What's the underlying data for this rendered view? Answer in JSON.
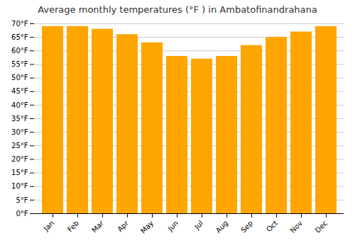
{
  "chart_data": {
    "type": "bar",
    "title": "Average monthly temperatures (°F ) in Ambatofinandrahana",
    "categories": [
      "Jan",
      "Feb",
      "Mar",
      "Apr",
      "May",
      "Jun",
      "Jul",
      "Aug",
      "Sep",
      "Oct",
      "Nov",
      "Dec"
    ],
    "values": [
      69,
      69,
      68,
      66,
      63,
      58,
      57,
      58,
      62,
      65,
      67,
      69
    ],
    "color": "#FFA500",
    "ylim": [
      0,
      70
    ],
    "yticks": [
      {
        "value": 0,
        "label": "0°F"
      },
      {
        "value": 5,
        "label": "5°F"
      },
      {
        "value": 10,
        "label": "10°F"
      },
      {
        "value": 15,
        "label": "15°F"
      },
      {
        "value": 20,
        "label": "20°F"
      },
      {
        "value": 25,
        "label": "25°F"
      },
      {
        "value": 30,
        "label": "30°F"
      },
      {
        "value": 35,
        "label": "35°F"
      },
      {
        "value": 40,
        "label": "40°F"
      },
      {
        "value": 45,
        "label": "45°F"
      },
      {
        "value": 50,
        "label": "50°F"
      },
      {
        "value": 55,
        "label": "55°F"
      },
      {
        "value": 60,
        "label": "60°F"
      },
      {
        "value": 65,
        "label": "65°F"
      },
      {
        "value": 70,
        "label": "70°F"
      }
    ],
    "grid": true
  }
}
